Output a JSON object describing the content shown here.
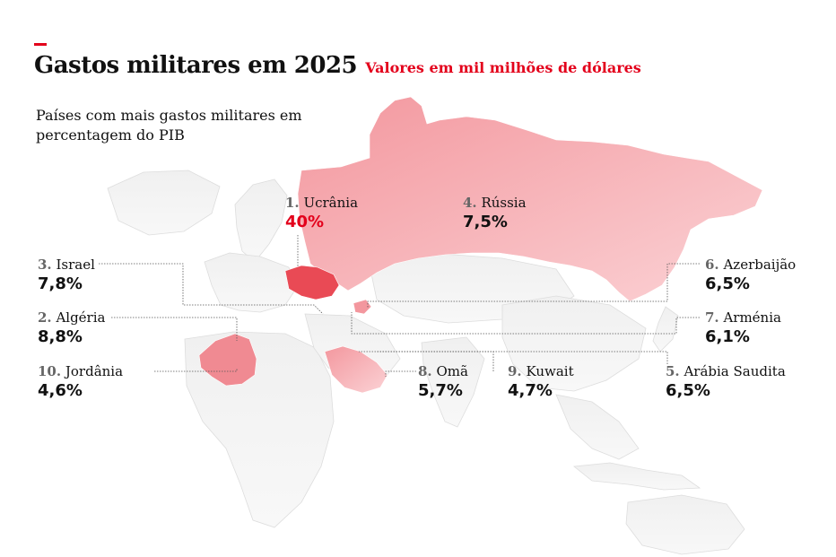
{
  "title": "Gastos militares em 2025",
  "subtitle": "Valores em mil milhões de dólares",
  "intro": "Países com mais gastos militares em percentagem do PIB",
  "colors": {
    "accent": "#e3001b",
    "highlight_fill": "#f5a0a6",
    "land_fill": "#eeeeee",
    "leader_line": "#555555"
  },
  "countries": [
    {
      "id": "ucrania",
      "rank": "1.",
      "name": "Ucrânia",
      "value": "40%",
      "highlight": true
    },
    {
      "id": "algeria",
      "rank": "2.",
      "name": "Algéria",
      "value": "8,8%"
    },
    {
      "id": "israel",
      "rank": "3.",
      "name": "Israel",
      "value": "7,8%"
    },
    {
      "id": "russia",
      "rank": "4.",
      "name": "Rússia",
      "value": "7,5%"
    },
    {
      "id": "arabia",
      "rank": "5.",
      "name": "Arábia Saudita",
      "value": "6,5%"
    },
    {
      "id": "azerbaijao",
      "rank": "6.",
      "name": "Azerbaijão",
      "value": "6,5%"
    },
    {
      "id": "armenia",
      "rank": "7.",
      "name": "Arménia",
      "value": "6,1%"
    },
    {
      "id": "oma",
      "rank": "8.",
      "name": "Omã",
      "value": "5,7%"
    },
    {
      "id": "kuwait",
      "rank": "9.",
      "name": "Kuwait",
      "value": "4,7%"
    },
    {
      "id": "jordania",
      "rank": "10.",
      "name": "Jordânia",
      "value": "4,6%"
    }
  ]
}
